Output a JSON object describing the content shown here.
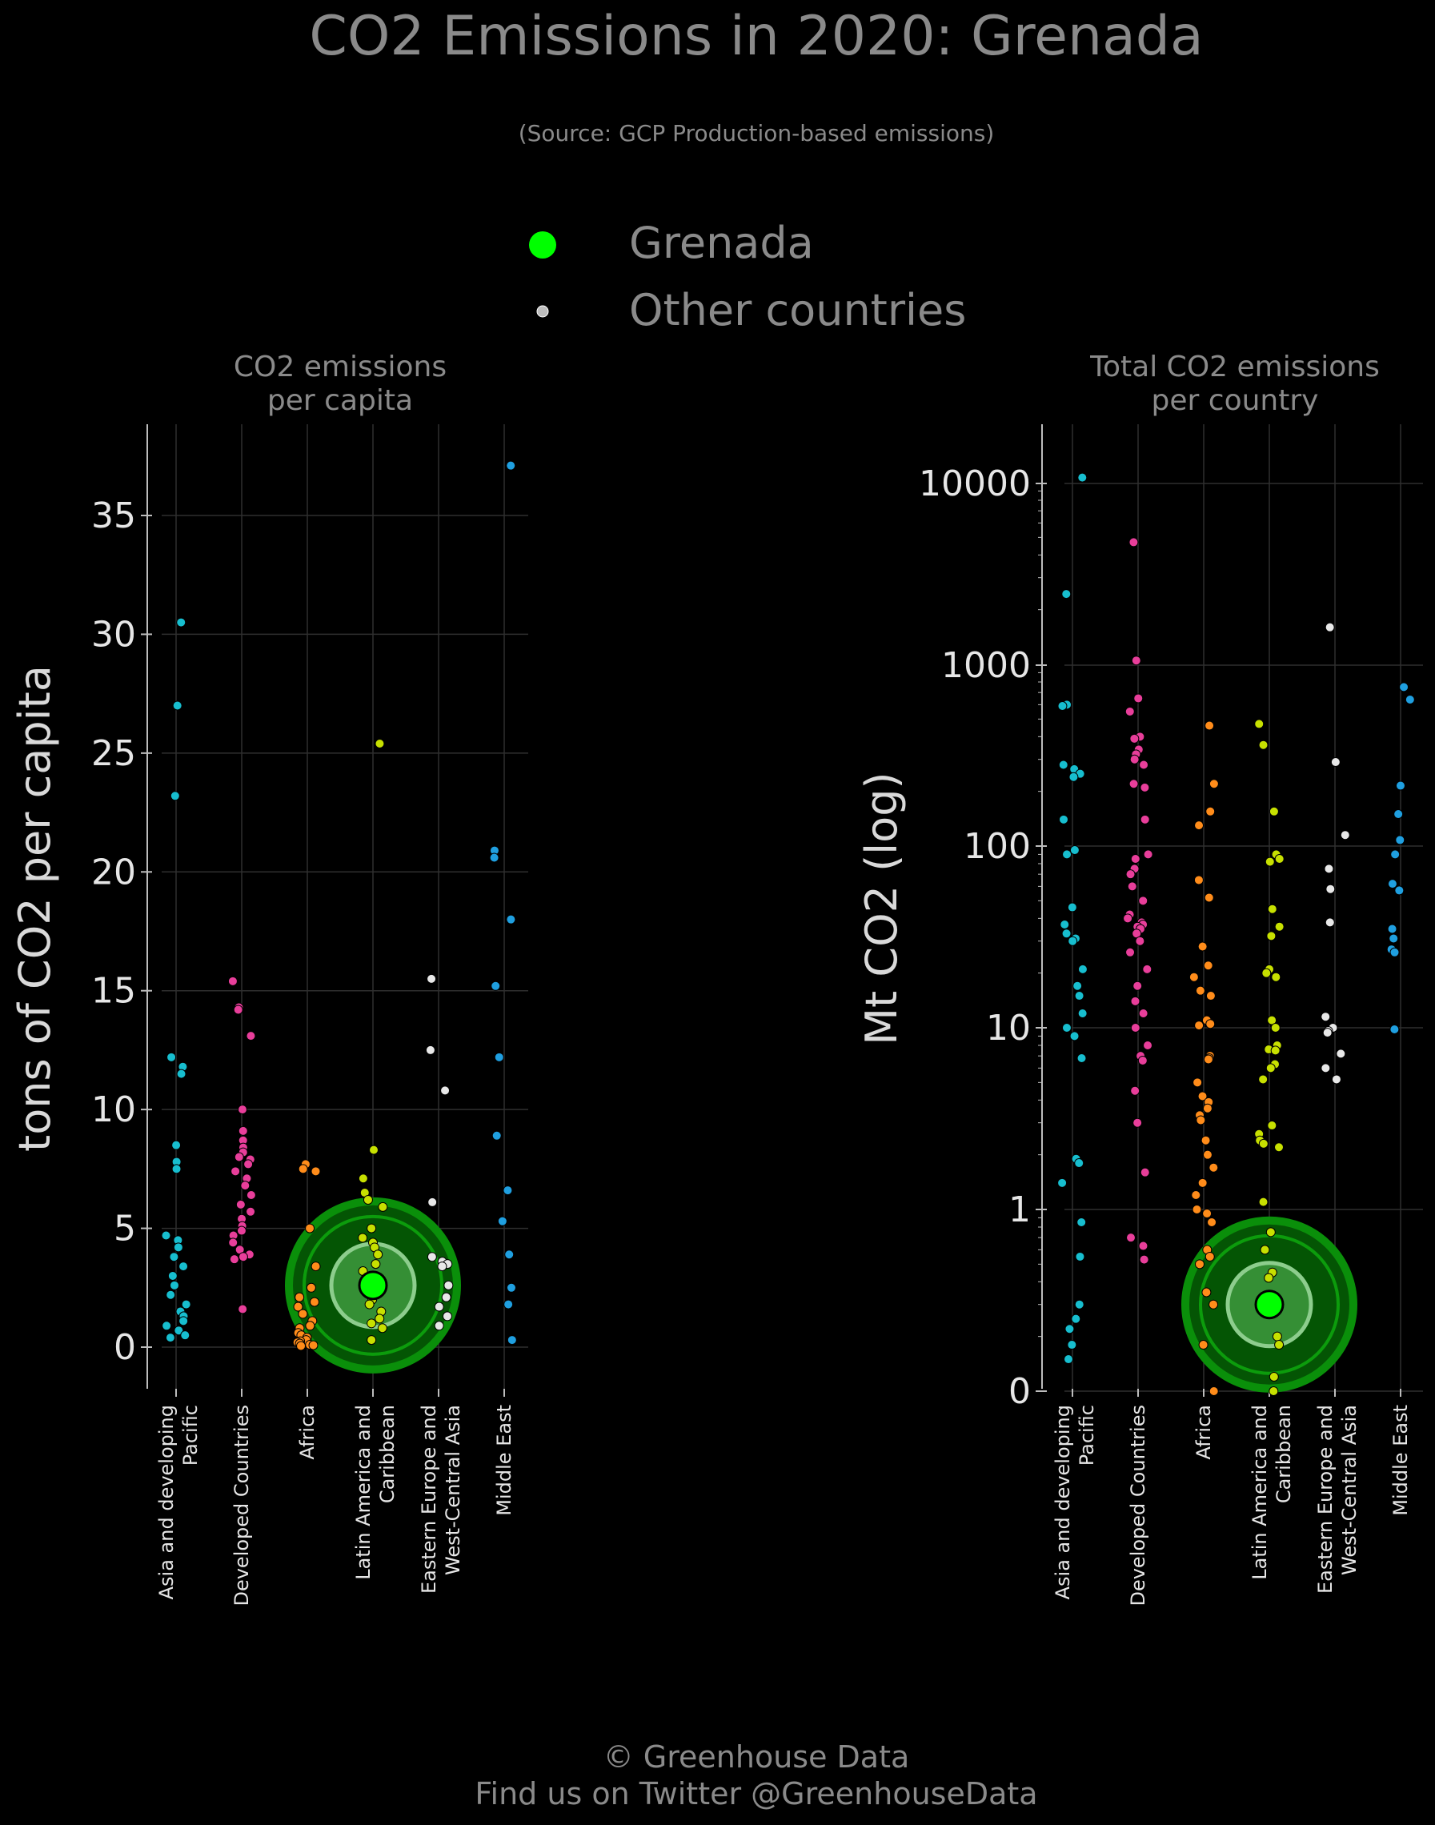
{
  "title": "CO2 Emissions in 2020: Grenada",
  "subtitle": "(Source: GCP Production-based emissions)",
  "legend": [
    {
      "label": "Grenada",
      "color": "#00ff00"
    },
    {
      "label": "Other countries",
      "color": "#bdbdbd"
    }
  ],
  "footer": {
    "line1": "© Greenhouse Data",
    "line2": "Find us on Twitter @GreenhouseData"
  },
  "colors": {
    "Asia and developing Pacific": "#17becf",
    "Developed Countries": "#e83e9a",
    "Africa": "#ff8c1a",
    "Latin America and Caribbean": "#c7e000",
    "Eastern Europe and West-Central Asia": "#e8e8e8",
    "Middle East": "#1f9fe0",
    "highlight": "#00ff00"
  },
  "chart_data": [
    {
      "type": "scatter",
      "title": "CO2 emissions\nper capita",
      "ylabel": "tons of CO2 per capita",
      "yscale": "linear",
      "ylim": [
        -1.8,
        39
      ],
      "yticks": [
        "0",
        "5",
        "10",
        "15",
        "20",
        "25",
        "30",
        "35"
      ],
      "categories": [
        "Asia and developing\nPacific",
        "Developed Countries",
        "Africa",
        "Latin America and\nCaribbean",
        "Eastern Europe and\nWest-Central Asia",
        "Middle East"
      ],
      "highlight": {
        "name": "Grenada",
        "category_index": 3,
        "value": 2.6
      },
      "series": [
        {
          "category": "Asia and developing Pacific",
          "values": [
            30.5,
            27.0,
            23.2,
            12.2,
            11.8,
            11.5,
            8.5,
            7.8,
            7.5,
            4.7,
            4.5,
            4.2,
            3.8,
            3.4,
            3.0,
            2.6,
            2.2,
            1.8,
            1.5,
            1.3,
            1.1,
            0.9,
            0.7,
            0.5,
            0.4
          ]
        },
        {
          "category": "Developed Countries",
          "values": [
            15.4,
            14.3,
            14.2,
            13.1,
            10.0,
            9.1,
            8.7,
            8.4,
            8.2,
            8.0,
            7.9,
            7.7,
            7.4,
            7.1,
            6.8,
            6.4,
            6.0,
            5.7,
            5.4,
            5.1,
            4.9,
            4.7,
            4.4,
            4.1,
            3.9,
            3.8,
            3.7,
            1.6
          ]
        },
        {
          "category": "Africa",
          "values": [
            7.7,
            7.5,
            7.4,
            5.0,
            3.4,
            2.5,
            2.1,
            1.9,
            1.7,
            1.4,
            1.1,
            0.9,
            0.8,
            0.6,
            0.5,
            0.4,
            0.3,
            0.25,
            0.2,
            0.15,
            0.1,
            0.08,
            0.05
          ]
        },
        {
          "category": "Latin America and Caribbean",
          "values": [
            25.4,
            8.3,
            7.1,
            6.5,
            6.2,
            5.9,
            5.0,
            4.6,
            4.4,
            4.2,
            3.9,
            3.5,
            3.2,
            2.9,
            2.6,
            2.3,
            2.0,
            1.8,
            1.5,
            1.2,
            1.0,
            0.8,
            0.3
          ]
        },
        {
          "category": "Eastern Europe and West-Central Asia",
          "values": [
            15.5,
            12.5,
            10.8,
            6.1,
            3.8,
            3.6,
            3.5,
            3.4,
            2.6,
            2.1,
            1.7,
            1.3,
            0.9
          ]
        },
        {
          "category": "Middle East",
          "values": [
            37.1,
            20.9,
            20.6,
            18.0,
            15.2,
            12.2,
            8.9,
            6.6,
            5.3,
            3.9,
            2.5,
            1.8,
            0.3
          ]
        }
      ]
    },
    {
      "type": "scatter",
      "title": "Total CO2 emissions\nper country",
      "ylabel": "Mt CO2 (log)",
      "yscale": "log",
      "ylim": [
        0,
        20000
      ],
      "yticks": [
        "0",
        "1",
        "10",
        "100",
        "1000",
        "10000"
      ],
      "categories": [
        "Asia and developing\nPacific",
        "Developed Countries",
        "Africa",
        "Latin America and\nCaribbean",
        "Eastern Europe and\nWest-Central Asia",
        "Middle East"
      ],
      "highlight": {
        "name": "Grenada",
        "category_index": 3,
        "value": 0.3
      },
      "series": [
        {
          "category": "Asia and developing Pacific",
          "values": [
            10667,
            2440,
            600,
            590,
            280,
            265,
            250,
            240,
            140,
            95,
            90,
            46,
            37,
            33,
            31,
            30,
            21,
            17,
            15,
            12,
            10,
            9,
            6.8,
            1.9,
            1.8,
            1.4,
            0.85,
            0.55,
            0.3,
            0.25,
            0.22,
            0.18,
            0.15
          ]
        },
        {
          "category": "Developed Countries",
          "values": [
            4700,
            1050,
            650,
            550,
            400,
            390,
            340,
            320,
            300,
            280,
            220,
            210,
            140,
            90,
            85,
            75,
            70,
            60,
            50,
            42,
            40,
            38,
            37,
            36,
            35,
            33,
            30,
            26,
            21,
            17,
            14,
            12,
            10,
            8,
            7,
            6.6,
            4.5,
            3.0,
            1.6,
            0.7,
            0.63,
            0.53
          ]
        },
        {
          "category": "Africa",
          "values": [
            460,
            220,
            155,
            130,
            65,
            52,
            28,
            22,
            19,
            16,
            15,
            11,
            10.5,
            10.3,
            7,
            6.8,
            6.7,
            5,
            4.2,
            3.9,
            3.6,
            3.3,
            3.1,
            2.4,
            2.0,
            1.7,
            1.4,
            1.2,
            1.0,
            0.95,
            0.85,
            0.6,
            0.55,
            0.5,
            0.35,
            0.3,
            0.18,
            0.08
          ]
        },
        {
          "category": "Latin America and Caribbean",
          "values": [
            470,
            360,
            155,
            90,
            85,
            82,
            45,
            36,
            32,
            21,
            20,
            19,
            11,
            10,
            8,
            7.6,
            7.5,
            6.3,
            6,
            5.2,
            2.9,
            2.6,
            2.4,
            2.3,
            2.2,
            1.1,
            0.75,
            0.6,
            0.45,
            0.42,
            0.2,
            0.18,
            0.12,
            0.1
          ]
        },
        {
          "category": "Eastern Europe and West-Central Asia",
          "values": [
            1600,
            290,
            115,
            75,
            58,
            38,
            11.5,
            10,
            9.6,
            9.4,
            7.2,
            6,
            5.2
          ]
        },
        {
          "category": "Middle East",
          "values": [
            750,
            640,
            215,
            150,
            108,
            90,
            62,
            57,
            35,
            31,
            27,
            26,
            9.8
          ]
        }
      ]
    }
  ]
}
